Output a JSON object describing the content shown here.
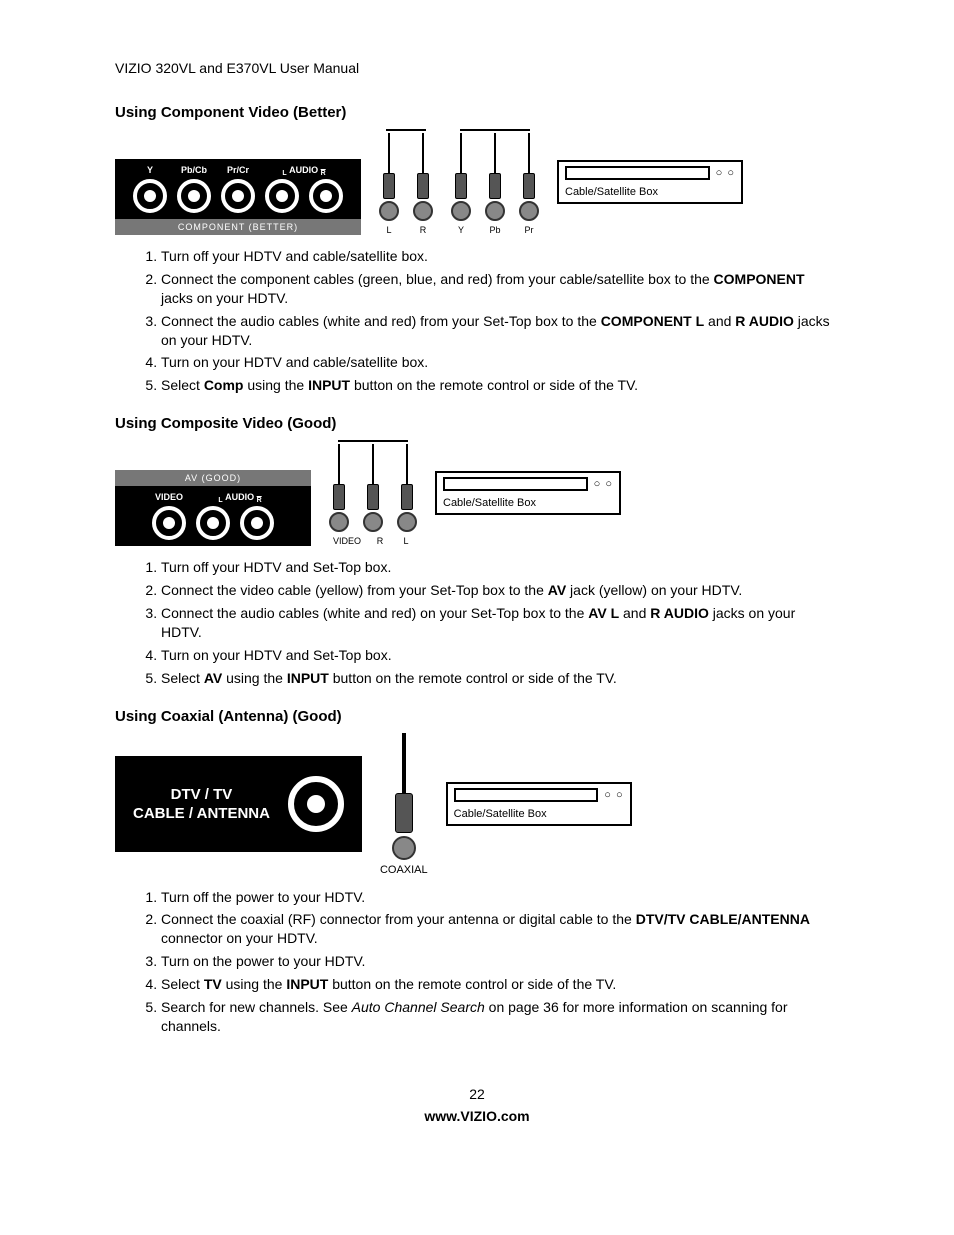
{
  "header": "VIZIO 320VL and E370VL User Manual",
  "page_number": "22",
  "website": "www.VIZIO.com",
  "stb_label": "Cable/Satellite Box",
  "sections": {
    "component": {
      "title": "Using Component Video (Better)",
      "panel_labels": {
        "y": "Y",
        "pb": "Pb/Cb",
        "pr": "Pr/Cr",
        "aud_l": "L",
        "aud_word": "AUDIO",
        "aud_r": "R"
      },
      "panel_footer": "COMPONENT (BETTER)",
      "plug_labels_a": {
        "l": "L",
        "r": "R"
      },
      "plug_labels_b": {
        "y": "Y",
        "pb": "Pb",
        "pr": "Pr"
      },
      "steps": [
        "Turn off your HDTV and cable/satellite box.",
        "Connect the component cables (green, blue, and red) from your cable/satellite box to the <b>COMPONENT</b> jacks on your HDTV.",
        "Connect the audio cables (white and red) from your Set-Top box to the <b>COMPONENT L</b> and <b>R AUDIO</b> jacks on your HDTV.",
        "Turn on your HDTV and cable/satellite box.",
        "Select <b>Comp</b> using the <b>INPUT</b> button on the remote control or side of the TV."
      ]
    },
    "composite": {
      "title": "Using Composite Video (Good)",
      "panel_top": "AV (GOOD)",
      "panel_labels": {
        "video": "VIDEO",
        "aud_l": "L",
        "aud_word": "AUDIO",
        "aud_r": "R"
      },
      "plug_labels": {
        "v": "VIDEO",
        "r": "R",
        "l": "L"
      },
      "steps": [
        "Turn off your HDTV and Set-Top box.",
        "Connect the video cable (yellow) from your Set-Top box to the <b>AV</b> jack (yellow) on your HDTV.",
        "Connect the audio cables (white and red) on your Set-Top box to the <b>AV L</b> and <b>R AUDIO</b> jacks on your HDTV.",
        "Turn on your HDTV and Set-Top box.",
        "Select <b>AV</b> using the <b>INPUT</b> button on the remote control or side of the TV."
      ]
    },
    "coax": {
      "title": "Using Coaxial (Antenna) (Good)",
      "panel_line1": "DTV / TV",
      "panel_line2": "CABLE / ANTENNA",
      "plug_label": "COAXIAL",
      "steps": [
        "Turn off the power to your HDTV.",
        "Connect the coaxial (RF) connector from your antenna or digital cable to the <b>DTV/TV CABLE/ANTENNA</b> connector on your HDTV.",
        "Turn on the power to your HDTV.",
        "Select <b>TV</b> using the <b>INPUT</b> button on the remote control or side of the TV.",
        "Search for new channels. See <i>Auto Channel Search</i> on page 36 for more information on scanning for channels."
      ]
    }
  }
}
